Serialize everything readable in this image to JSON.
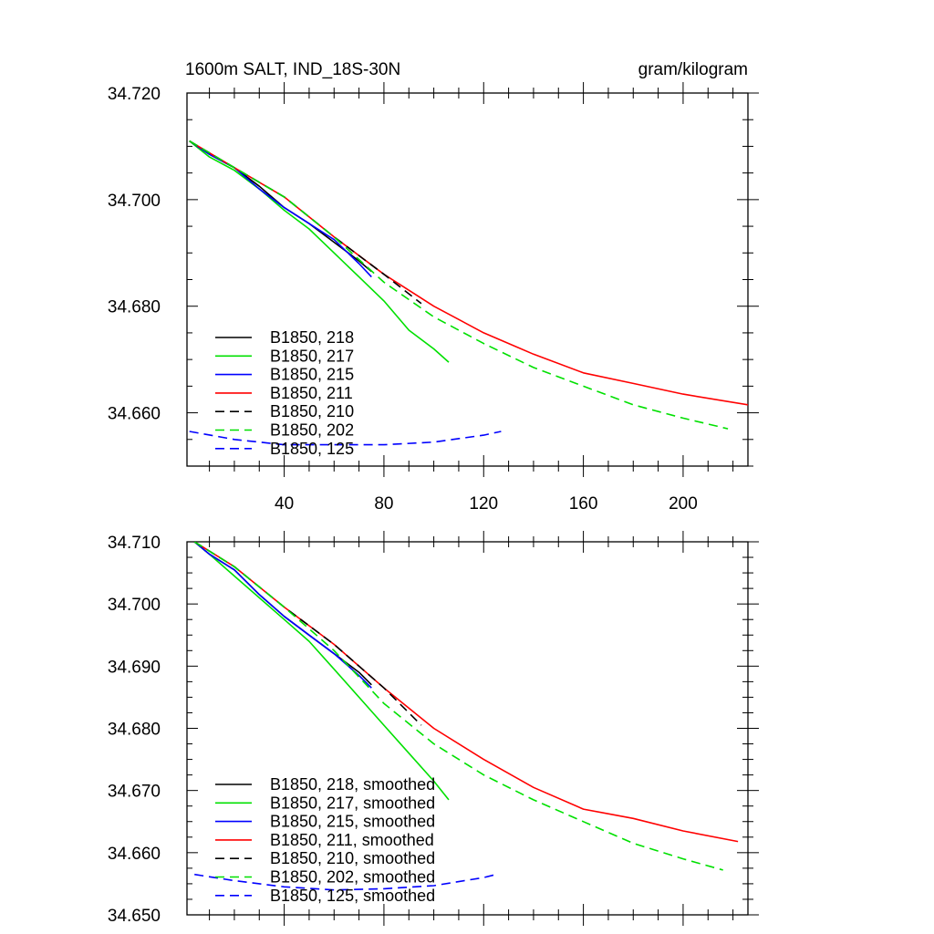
{
  "chart_data": [
    {
      "type": "line",
      "title": "1600m SALT, IND_18S-30N",
      "units": "gram/kilogram",
      "xlim": [
        1,
        226
      ],
      "ylim": [
        34.65,
        34.72
      ],
      "xticks": [
        40,
        80,
        120,
        160,
        200
      ],
      "xtick_labels": [
        "40",
        "80",
        "120",
        "160",
        "200"
      ],
      "yticks": [
        34.66,
        34.68,
        34.7,
        34.72
      ],
      "ytick_labels": [
        "34.660",
        "34.680",
        "34.700",
        "34.720"
      ],
      "legend_position": "bottom-left",
      "series": [
        {
          "name": "B1850, 218",
          "color": "#000000",
          "dash": "solid",
          "x": [
            2,
            10,
            20,
            30,
            40,
            50,
            60,
            70,
            75
          ],
          "y": [
            34.711,
            34.7085,
            34.706,
            34.7025,
            34.6985,
            34.6955,
            34.692,
            34.6885,
            34.6865
          ]
        },
        {
          "name": "B1850, 217",
          "color": "#00e000",
          "dash": "solid",
          "x": [
            2,
            10,
            20,
            30,
            40,
            50,
            60,
            70,
            80,
            90,
            100,
            106
          ],
          "y": [
            34.711,
            34.708,
            34.7055,
            34.702,
            34.698,
            34.6945,
            34.69,
            34.6855,
            34.681,
            34.6755,
            34.672,
            34.6695
          ]
        },
        {
          "name": "B1850, 215",
          "color": "#0000ff",
          "dash": "solid",
          "x": [
            2,
            10,
            20,
            30,
            40,
            50,
            60,
            70,
            75
          ],
          "y": [
            34.711,
            34.7085,
            34.706,
            34.702,
            34.6985,
            34.6955,
            34.6925,
            34.688,
            34.6855
          ]
        },
        {
          "name": "B1850, 211",
          "color": "#ff0000",
          "dash": "solid",
          "x": [
            2,
            20,
            40,
            60,
            80,
            100,
            120,
            140,
            160,
            180,
            200,
            226
          ],
          "y": [
            34.711,
            34.706,
            34.7005,
            34.693,
            34.686,
            34.68,
            34.675,
            34.671,
            34.6675,
            34.6655,
            34.6635,
            34.6615
          ]
        },
        {
          "name": "B1850, 210",
          "color": "#000000",
          "dash": "dashed",
          "x": [
            2,
            20,
            40,
            60,
            80,
            95
          ],
          "y": [
            34.711,
            34.706,
            34.7005,
            34.693,
            34.686,
            34.6805
          ]
        },
        {
          "name": "B1850, 202",
          "color": "#00e000",
          "dash": "dashed",
          "x": [
            2,
            20,
            40,
            60,
            80,
            100,
            120,
            140,
            160,
            180,
            200,
            218
          ],
          "y": [
            34.711,
            34.706,
            34.7005,
            34.693,
            34.6845,
            34.678,
            34.673,
            34.6685,
            34.665,
            34.6615,
            34.659,
            34.657
          ]
        },
        {
          "name": "B1850, 125",
          "color": "#0000ff",
          "dash": "dashed",
          "x": [
            2,
            20,
            40,
            60,
            80,
            100,
            120,
            127
          ],
          "y": [
            34.6565,
            34.655,
            34.654,
            34.654,
            34.654,
            34.6545,
            34.6558,
            34.6565
          ]
        }
      ]
    },
    {
      "type": "line",
      "title": "",
      "xlim": [
        1,
        226
      ],
      "ylim": [
        34.65,
        34.71
      ],
      "yticks": [
        34.65,
        34.66,
        34.67,
        34.68,
        34.69,
        34.7,
        34.71
      ],
      "ytick_labels": [
        "34.650",
        "34.660",
        "34.670",
        "34.680",
        "34.690",
        "34.700",
        "34.710"
      ],
      "legend_position": "bottom-left",
      "series": [
        {
          "name": "B1850, 218, smoothed",
          "color": "#000000",
          "dash": "solid",
          "x": [
            4,
            10,
            20,
            30,
            40,
            50,
            60,
            70,
            75
          ],
          "y": [
            34.71,
            34.708,
            34.7055,
            34.7015,
            34.698,
            34.695,
            34.692,
            34.689,
            34.687
          ]
        },
        {
          "name": "B1850, 217, smoothed",
          "color": "#00e000",
          "dash": "solid",
          "x": [
            4,
            10,
            20,
            30,
            40,
            50,
            60,
            70,
            80,
            90,
            100,
            106
          ],
          "y": [
            34.71,
            34.708,
            34.7045,
            34.701,
            34.6975,
            34.694,
            34.6895,
            34.685,
            34.6805,
            34.676,
            34.6715,
            34.6685
          ]
        },
        {
          "name": "B1850, 215, smoothed",
          "color": "#0000ff",
          "dash": "solid",
          "x": [
            4,
            10,
            20,
            30,
            40,
            50,
            60,
            70,
            75
          ],
          "y": [
            34.71,
            34.708,
            34.7055,
            34.7015,
            34.698,
            34.695,
            34.692,
            34.6885,
            34.6865
          ]
        },
        {
          "name": "B1850, 211, smoothed",
          "color": "#ff0000",
          "dash": "solid",
          "x": [
            4,
            20,
            40,
            60,
            80,
            100,
            120,
            140,
            160,
            180,
            200,
            222
          ],
          "y": [
            34.71,
            34.706,
            34.6995,
            34.6935,
            34.6865,
            34.68,
            34.675,
            34.6705,
            34.667,
            34.6655,
            34.6635,
            34.6618
          ]
        },
        {
          "name": "B1850, 210, smoothed",
          "color": "#000000",
          "dash": "dashed",
          "x": [
            4,
            20,
            40,
            60,
            80,
            95
          ],
          "y": [
            34.71,
            34.706,
            34.6995,
            34.6935,
            34.6865,
            34.6805
          ]
        },
        {
          "name": "B1850, 202, smoothed",
          "color": "#00e000",
          "dash": "dashed",
          "x": [
            4,
            20,
            40,
            60,
            80,
            100,
            120,
            140,
            160,
            180,
            200,
            216
          ],
          "y": [
            34.71,
            34.706,
            34.6995,
            34.6925,
            34.684,
            34.6775,
            34.6725,
            34.6685,
            34.665,
            34.6615,
            34.659,
            34.6572
          ]
        },
        {
          "name": "B1850, 125, smoothed",
          "color": "#0000ff",
          "dash": "dashed",
          "x": [
            4,
            20,
            40,
            60,
            80,
            100,
            120,
            125
          ],
          "y": [
            34.6565,
            34.6555,
            34.6545,
            34.654,
            34.6542,
            34.6547,
            34.656,
            34.6565
          ]
        }
      ]
    }
  ]
}
